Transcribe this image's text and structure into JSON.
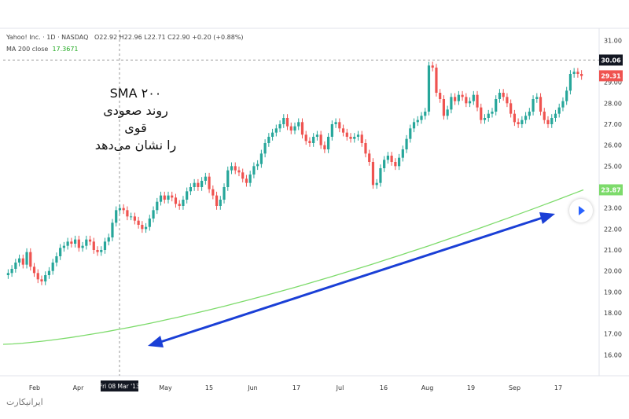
{
  "legend": {
    "symbol": "Yahoo! Inc. · 1D · NASDAQ",
    "ohlc": "O22.92 H22.96 L22.71 C22.90 +0.20 (+0.88%)",
    "ma_label": "MA 200 close",
    "ma_value": "17.3671"
  },
  "annotation": {
    "line1": "SMA ۲۰۰",
    "line2": "روند صعودی قوی",
    "line3": "را نشان می‌دهد"
  },
  "watermark": "ایرانیکارت",
  "colors": {
    "up": "#26a69a",
    "down": "#ef5350",
    "ma": "#7ddb6b",
    "arrow": "#1a3fd6"
  },
  "chart_data": {
    "type": "candlestick",
    "ylim": [
      15.0,
      31.5
    ],
    "yticks": [
      "16.00",
      "17.00",
      "18.00",
      "19.00",
      "20.00",
      "21.00",
      "22.00",
      "23.00",
      "24.00",
      "25.00",
      "26.00",
      "27.00",
      "28.00",
      "29.00",
      "30.00",
      "31.00"
    ],
    "xticks": [
      "Feb",
      "Apr",
      "15",
      "May",
      "15",
      "Jun",
      "17",
      "Jul",
      "16",
      "Aug",
      "19",
      "Sep",
      "17"
    ],
    "crosshair": {
      "x_label": "Fri 08 Mar '13",
      "y_label": "30.06"
    },
    "price_labels": {
      "last": "29.31",
      "ma": "23.87"
    },
    "closes": [
      19.9,
      20.1,
      20.4,
      20.6,
      20.3,
      20.9,
      20.2,
      19.9,
      19.6,
      19.5,
      19.8,
      20.0,
      20.4,
      20.7,
      21.1,
      21.2,
      21.4,
      21.3,
      21.5,
      21.1,
      21.2,
      21.5,
      21.4,
      21.0,
      20.9,
      21.0,
      21.4,
      21.6,
      22.3,
      22.9,
      23.0,
      22.9,
      22.6,
      22.6,
      22.4,
      22.2,
      22.0,
      22.1,
      22.5,
      22.9,
      23.3,
      23.6,
      23.4,
      23.6,
      23.5,
      23.2,
      23.1,
      23.4,
      23.8,
      24.0,
      24.2,
      24.0,
      24.3,
      24.5,
      23.9,
      23.6,
      23.1,
      23.4,
      24.0,
      24.8,
      25.0,
      24.8,
      24.7,
      24.4,
      24.2,
      24.6,
      25.0,
      25.1,
      25.6,
      26.1,
      26.4,
      26.6,
      26.8,
      27.0,
      27.3,
      26.9,
      26.7,
      26.9,
      27.1,
      26.5,
      26.2,
      26.1,
      26.4,
      26.5,
      26.0,
      25.8,
      26.4,
      27.0,
      27.1,
      26.8,
      26.6,
      26.4,
      26.3,
      26.4,
      26.5,
      26.1,
      25.6,
      25.2,
      24.1,
      24.2,
      24.9,
      25.3,
      25.5,
      25.2,
      25.0,
      25.4,
      25.8,
      26.3,
      26.8,
      27.1,
      27.2,
      27.4,
      27.6,
      29.8,
      29.7,
      28.5,
      28.2,
      27.4,
      27.7,
      28.3,
      28.1,
      28.4,
      28.3,
      28.0,
      28.1,
      28.4,
      27.8,
      27.2,
      27.3,
      27.5,
      27.6,
      28.2,
      28.5,
      28.3,
      28.0,
      27.5,
      27.1,
      27.0,
      27.2,
      27.4,
      27.6,
      28.2,
      28.3,
      27.6,
      27.2,
      27.0,
      27.3,
      27.5,
      27.8,
      28.1,
      28.6,
      29.4,
      29.5,
      29.4,
      29.3
    ],
    "ma_series": {
      "start": 16.5,
      "end": 23.87
    }
  }
}
